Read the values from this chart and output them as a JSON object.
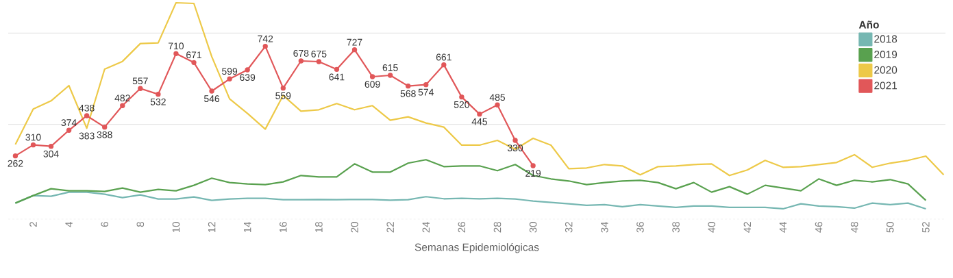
{
  "chart_data": {
    "type": "line",
    "xlabel": "Semanas Epidemiológicas",
    "legend_title": "Año",
    "legend": "top right",
    "tick_labels": "x",
    "x": [
      1,
      2,
      3,
      4,
      5,
      6,
      7,
      8,
      9,
      10,
      11,
      12,
      13,
      14,
      15,
      16,
      17,
      18,
      19,
      20,
      21,
      22,
      23,
      24,
      25,
      26,
      27,
      28,
      29,
      30,
      31,
      32,
      33,
      34,
      35,
      36,
      37,
      38,
      39,
      40,
      41,
      42,
      43,
      44,
      45,
      46,
      47,
      48,
      49,
      50,
      51,
      52,
      53
    ],
    "xlim": [
      0.6,
      53.1
    ],
    "xticks": [
      2,
      4,
      6,
      8,
      10,
      12,
      14,
      16,
      18,
      20,
      22,
      24,
      26,
      28,
      30,
      32,
      34,
      36,
      38,
      40,
      42,
      44,
      46,
      48,
      50,
      52
    ],
    "ref_lines": [
      {
        "axis": "y",
        "value": 400,
        "color": "#e6e6e6"
      },
      {
        "axis": "y",
        "value": 800,
        "color": "#e6e6e6"
      }
    ],
    "series": [
      {
        "name": "2018",
        "color": "#76b7b2",
        "values": [
          55,
          88,
          85,
          103,
          103,
          94,
          79,
          91,
          73,
          73,
          82,
          67,
          73,
          76,
          76,
          70,
          70,
          71,
          70,
          71,
          71,
          68,
          70,
          83,
          74,
          76,
          74,
          76,
          73,
          64,
          58,
          52,
          45,
          48,
          39,
          48,
          42,
          36,
          42,
          42,
          36,
          36,
          36,
          30,
          52,
          42,
          39,
          33,
          55,
          48,
          55,
          30,
          null
        ]
      },
      {
        "name": "2019",
        "color": "#59a14f",
        "values": [
          55,
          88,
          118,
          109,
          109,
          106,
          121,
          103,
          115,
          109,
          133,
          164,
          145,
          139,
          136,
          148,
          176,
          170,
          170,
          227,
          191,
          191,
          230,
          245,
          215,
          218,
          218,
          197,
          224,
          176,
          161,
          152,
          136,
          145,
          152,
          155,
          145,
          118,
          145,
          103,
          127,
          94,
          133,
          121,
          109,
          161,
          133,
          155,
          148,
          158,
          139,
          67,
          null
        ]
      },
      {
        "name": "2020",
        "color": "#edc948",
        "values": [
          312,
          467,
          503,
          570,
          383,
          642,
          676,
          754,
          757,
          933,
          930,
          697,
          512,
          448,
          379,
          527,
          458,
          464,
          491,
          464,
          482,
          418,
          433,
          406,
          388,
          309,
          309,
          330,
          291,
          339,
          309,
          206,
          209,
          224,
          218,
          179,
          215,
          218,
          224,
          227,
          176,
          200,
          242,
          212,
          215,
          224,
          233,
          267,
          212,
          230,
          242,
          261,
          179
        ],
        "value_labels": [
          null,
          null,
          null,
          null,
          "383",
          null,
          null,
          null,
          null,
          null,
          null,
          null,
          null,
          null,
          null,
          null,
          null,
          null,
          null,
          null,
          null,
          null,
          null,
          null,
          null,
          null,
          null,
          null,
          null,
          null,
          null,
          null,
          null,
          null,
          null,
          null,
          null,
          null,
          null,
          null,
          null,
          null,
          null,
          null,
          null,
          null,
          null,
          null,
          null,
          null,
          null,
          null,
          null
        ]
      },
      {
        "name": "2021",
        "color": "#e15759",
        "marker": "circle",
        "values": [
          262,
          310,
          304,
          374,
          438,
          388,
          482,
          557,
          532,
          710,
          671,
          546,
          599,
          639,
          742,
          559,
          678,
          675,
          641,
          727,
          609,
          615,
          568,
          574,
          661,
          520,
          445,
          485,
          330,
          219,
          null,
          null,
          null,
          null,
          null,
          null,
          null,
          null,
          null,
          null,
          null,
          null,
          null,
          null,
          null,
          null,
          null,
          null,
          null,
          null,
          null,
          null,
          null
        ],
        "value_labels": [
          "262",
          "310",
          "304",
          "374",
          "438",
          "388",
          "482",
          "557",
          "532",
          "710",
          "671",
          "546",
          "599",
          "639",
          "742",
          "559",
          "678",
          "675",
          "641",
          "727",
          "609",
          "615",
          "568",
          "574",
          "661",
          "520",
          "445",
          "485",
          "330",
          "219",
          null,
          null,
          null,
          null,
          null,
          null,
          null,
          null,
          null,
          null,
          null,
          null,
          null,
          null,
          null,
          null,
          null,
          null,
          null,
          null,
          null,
          null,
          null
        ]
      }
    ]
  }
}
